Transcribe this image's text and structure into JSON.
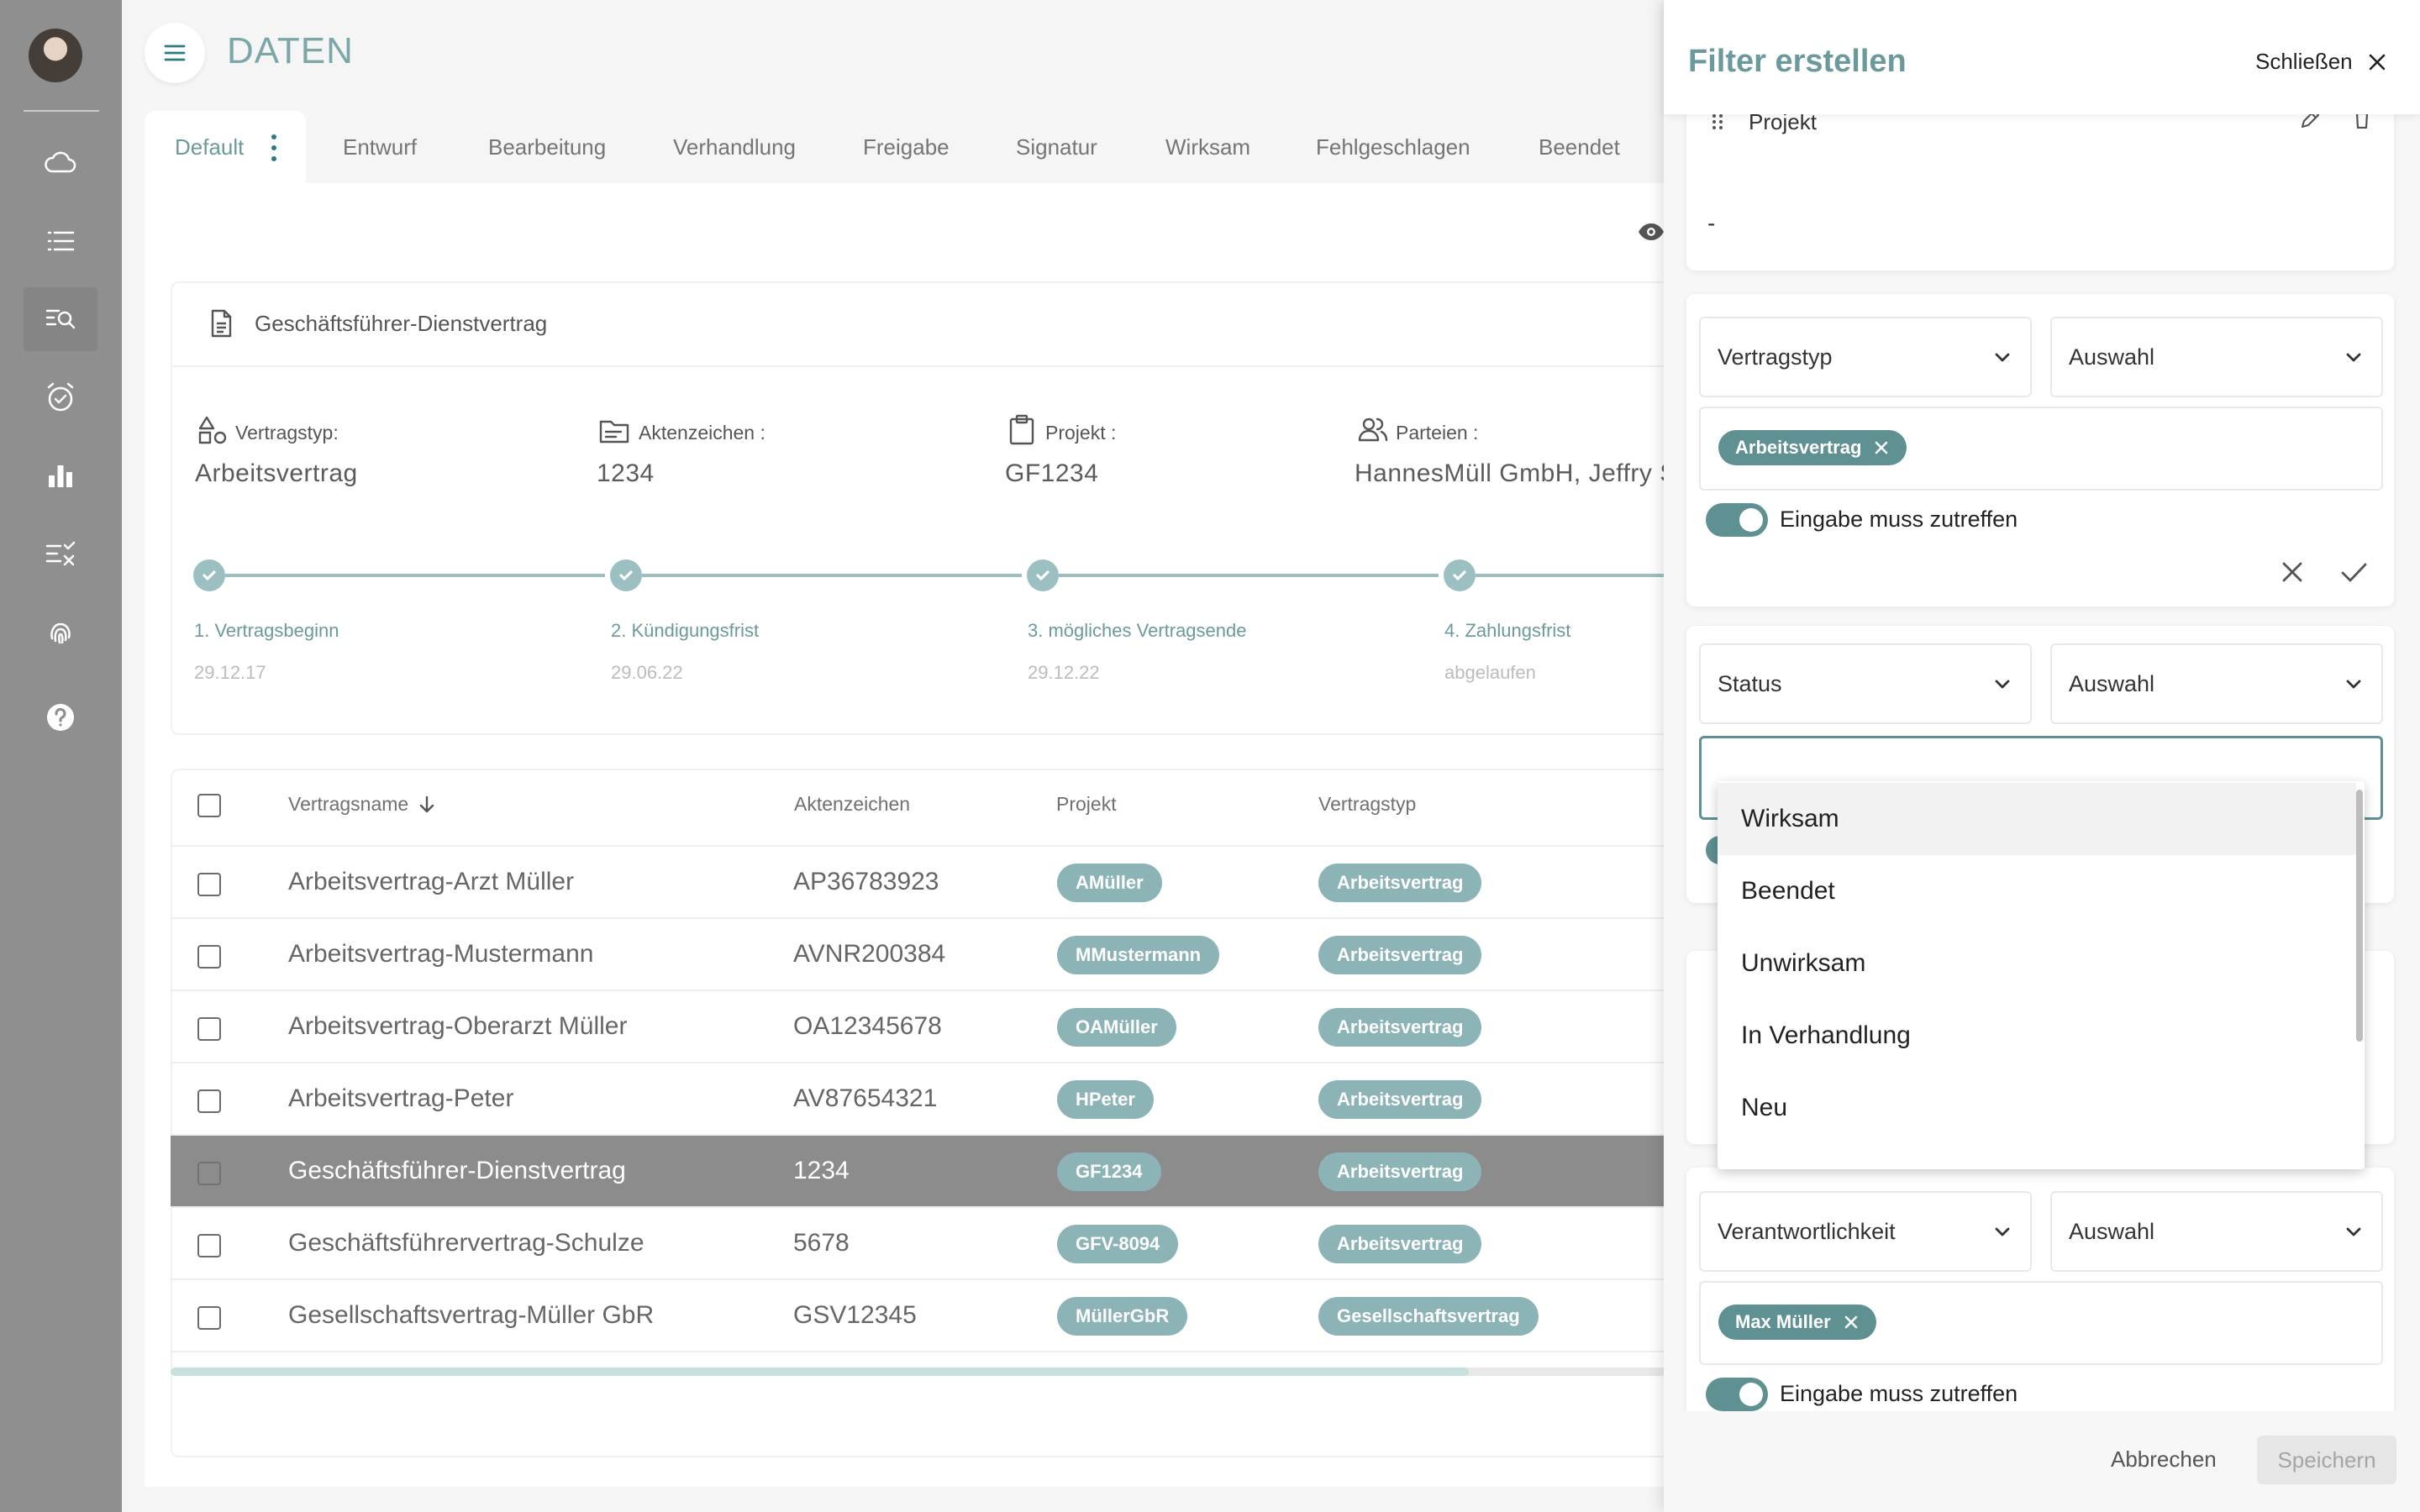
{
  "app": {
    "title": "DATEN"
  },
  "tabs": [
    {
      "label": "Default"
    },
    {
      "label": "Entwurf"
    },
    {
      "label": "Bearbeitung"
    },
    {
      "label": "Verhandlung"
    },
    {
      "label": "Freigabe"
    },
    {
      "label": "Signatur"
    },
    {
      "label": "Wirksam"
    },
    {
      "label": "Fehlgeschlagen"
    },
    {
      "label": "Beendet"
    }
  ],
  "detail": {
    "title": "Geschäftsführer-Dienstvertrag",
    "fields": [
      {
        "label": "Vertragstyp:",
        "value": "Arbeitsvertrag",
        "icon": "contract-type-icon"
      },
      {
        "label": "Aktenzeichen :",
        "value": "1234",
        "icon": "folder-icon"
      },
      {
        "label": "Projekt :",
        "value": "GF1234",
        "icon": "clipboard-icon"
      },
      {
        "label": "Parteien :",
        "value": "HannesMüll GmbH, Jeffry S",
        "icon": "people-icon"
      }
    ],
    "timeline": [
      {
        "label": "1. Vertragsbeginn",
        "date": "29.12.17"
      },
      {
        "label": "2. Kündigungsfrist",
        "date": "29.06.22"
      },
      {
        "label": "3. mögliches Vertragsende",
        "date": "29.12.22"
      },
      {
        "label": "4. Zahlungsfrist",
        "date": "abgelaufen"
      }
    ]
  },
  "table": {
    "headers": {
      "name": "Vertragsname",
      "az": "Aktenzeichen",
      "projekt": "Projekt",
      "typ": "Vertragstyp"
    },
    "sort_indicator": "arrow-down-icon",
    "rows": [
      {
        "name": "Arbeitsvertrag-Arzt Müller",
        "az": "AP36783923",
        "projekt": "AMüller",
        "typ": "Arbeitsvertrag"
      },
      {
        "name": "Arbeitsvertrag-Mustermann",
        "az": "AVNR200384",
        "projekt": "MMustermann",
        "typ": "Arbeitsvertrag"
      },
      {
        "name": "Arbeitsvertrag-Oberarzt Müller",
        "az": "OA12345678",
        "projekt": "OAMüller",
        "typ": "Arbeitsvertrag"
      },
      {
        "name": "Arbeitsvertrag-Peter",
        "az": "AV87654321",
        "projekt": "HPeter",
        "typ": "Arbeitsvertrag"
      },
      {
        "name": "Geschäftsführer-Dienstvertrag",
        "az": "1234",
        "projekt": "GF1234",
        "typ": "Arbeitsvertrag",
        "selected": true
      },
      {
        "name": "Geschäftsführervertrag-Schulze",
        "az": "5678",
        "projekt": "GFV-8094",
        "typ": "Arbeitsvertrag"
      },
      {
        "name": "Gesellschaftsvertrag-Müller GbR",
        "az": "GSV12345",
        "projekt": "MüllerGbR",
        "typ": "Gesellschaftsvertrag"
      }
    ]
  },
  "panel": {
    "title": "Filter erstellen",
    "close_label": "Schließen",
    "filters": [
      {
        "field": "Projekt",
        "value": "-"
      },
      {
        "field": "Vertragstyp",
        "operator": "Auswahl",
        "chip": "Arbeitsvertrag",
        "toggle_label": "Eingabe muss zutreffen"
      },
      {
        "field": "Status",
        "operator": "Auswahl",
        "input_value": ""
      },
      {
        "field": "Verantwortlichkeit",
        "operator": "Auswahl",
        "chip": "Max Müller",
        "toggle_label": "Eingabe muss zutreffen"
      }
    ],
    "dropdown_options": [
      "Wirksam",
      "Beendet",
      "Unwirksam",
      "In Verhandlung",
      "Neu"
    ],
    "cancel_label": "Abbrechen",
    "save_label": "Speichern"
  },
  "colors": {
    "accent": "#5f9193",
    "accent_light": "#8cb3b5",
    "sidebar": "#8f8f8f",
    "selected_row": "#8c8c8c"
  }
}
